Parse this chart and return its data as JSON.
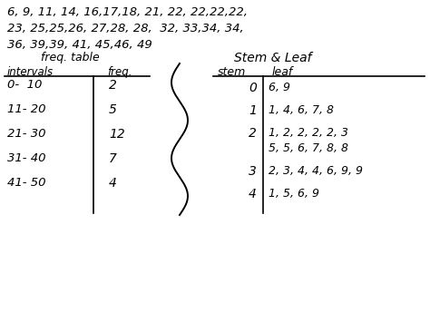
{
  "background_color": "#ffffff",
  "title_line1": "6, 9, 11, 14, 16,17,18, 21, 22, 22,22,22,",
  "title_line2": "23, 25,25,26, 27,28, 28,  32, 33,34, 34,",
  "title_line3": "36, 39,39, 41, 45,46, 49",
  "freq_table_title": "freq. table",
  "freq_col1_header": "intervals",
  "freq_col2_header": "freq.",
  "freq_intervals": [
    "0-  10",
    "11- 20",
    "21- 30",
    "31- 40",
    "41- 50"
  ],
  "freq_values": [
    "2",
    "5",
    "12",
    "7",
    "4"
  ],
  "stem_leaf_title": "Stem & Leaf",
  "stem_header": "stem",
  "leaf_header": "leaf",
  "stems": [
    "0",
    "1",
    "2",
    "",
    "3",
    "4"
  ],
  "leaves": [
    "6, 9",
    "1, 4, 6, 7, 8",
    "1, 2, 2, 2, 2, 3",
    "5, 5, 6, 7, 8, 8",
    "2, 3, 4, 4, 6, 9, 9",
    "1, 5, 6, 9"
  ]
}
